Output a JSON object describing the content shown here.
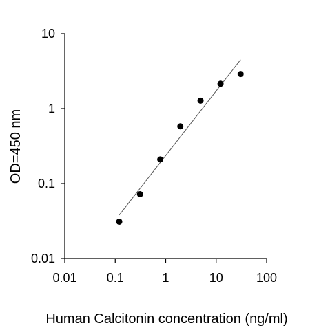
{
  "chart_data": {
    "type": "scatter",
    "title": "",
    "xlabel": "Human Calcitonin concentration (ng/ml)",
    "ylabel": "OD=450 nm",
    "x_scale": "log",
    "y_scale": "log",
    "xlim": [
      0.01,
      100
    ],
    "ylim": [
      0.01,
      10
    ],
    "x_ticks": [
      "0.01",
      "0.1",
      "1",
      "10",
      "100"
    ],
    "y_ticks": [
      "0.01",
      "0.1",
      "1",
      "10"
    ],
    "grid": false,
    "legend": "none",
    "series": [
      {
        "points": [
          {
            "x": 0.12,
            "y": 0.031
          },
          {
            "x": 0.31,
            "y": 0.072
          },
          {
            "x": 0.78,
            "y": 0.21
          },
          {
            "x": 1.95,
            "y": 0.58
          },
          {
            "x": 4.9,
            "y": 1.28
          },
          {
            "x": 12.2,
            "y": 2.15
          },
          {
            "x": 30.5,
            "y": 2.9
          }
        ],
        "marker_color": "#000000"
      }
    ],
    "trendline": {
      "from": {
        "x": 0.12,
        "y": 0.038
      },
      "to": {
        "x": 30.5,
        "y": 4.5
      },
      "color": "#555555"
    }
  }
}
